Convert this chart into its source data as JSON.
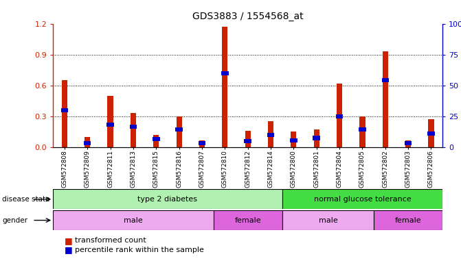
{
  "title": "GDS3883 / 1554568_at",
  "samples": [
    "GSM572808",
    "GSM572809",
    "GSM572811",
    "GSM572813",
    "GSM572815",
    "GSM572816",
    "GSM572807",
    "GSM572810",
    "GSM572812",
    "GSM572814",
    "GSM572800",
    "GSM572801",
    "GSM572804",
    "GSM572805",
    "GSM572802",
    "GSM572803",
    "GSM572806"
  ],
  "red_values": [
    0.65,
    0.1,
    0.5,
    0.33,
    0.12,
    0.3,
    0.07,
    1.17,
    0.16,
    0.25,
    0.15,
    0.17,
    0.62,
    0.3,
    0.93,
    0.07,
    0.27
  ],
  "blue_values_norm": [
    0.36,
    0.04,
    0.22,
    0.2,
    0.08,
    0.17,
    0.04,
    0.72,
    0.06,
    0.12,
    0.07,
    0.09,
    0.3,
    0.17,
    0.65,
    0.04,
    0.13
  ],
  "ylim_left": [
    0,
    1.2
  ],
  "ylim_right": [
    0,
    100
  ],
  "yticks_left": [
    0,
    0.3,
    0.6,
    0.9,
    1.2
  ],
  "yticks_right": [
    0,
    25,
    50,
    75,
    100
  ],
  "disease_state_groups": [
    {
      "label": "type 2 diabetes",
      "start": 0,
      "end": 10,
      "color": "#b0f0b0"
    },
    {
      "label": "normal glucose tolerance",
      "start": 10,
      "end": 17,
      "color": "#44dd44"
    }
  ],
  "gender_groups": [
    {
      "label": "male",
      "start": 0,
      "end": 7,
      "color": "#eeaaee"
    },
    {
      "label": "female",
      "start": 7,
      "end": 10,
      "color": "#dd66dd"
    },
    {
      "label": "male",
      "start": 10,
      "end": 14,
      "color": "#eeaaee"
    },
    {
      "label": "female",
      "start": 14,
      "end": 17,
      "color": "#dd66dd"
    }
  ],
  "bar_color_red": "#CC2200",
  "bar_color_blue": "#0000CC",
  "background_color": "#ffffff",
  "left_axis_color": "#CC2200",
  "right_axis_color": "#0000CC",
  "xtick_bg": "#d8d8d8"
}
